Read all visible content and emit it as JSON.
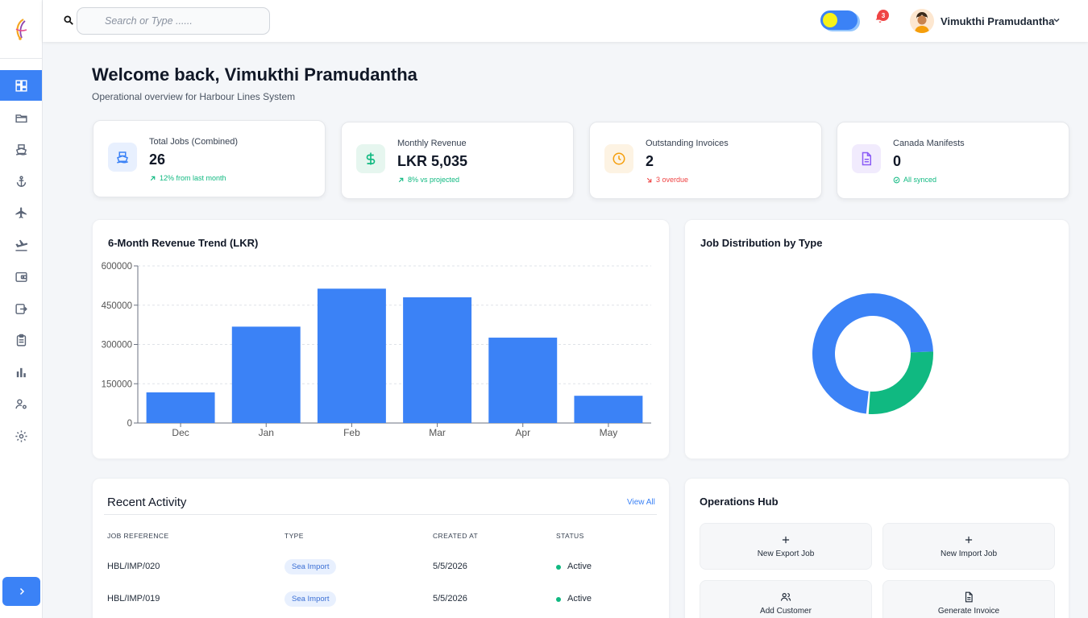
{
  "topbar": {
    "search_placeholder": "Search or Type ......",
    "notification_count": "3",
    "user_name": "Vimukthi Pramudantha"
  },
  "sidebar": {
    "items": [
      {
        "icon": "dashboard-icon",
        "active": true
      },
      {
        "icon": "folder-icon"
      },
      {
        "icon": "ship-icon"
      },
      {
        "icon": "anchor-icon"
      },
      {
        "icon": "plane-icon"
      },
      {
        "icon": "plane-landing-icon"
      },
      {
        "icon": "wallet-icon"
      },
      {
        "icon": "export-icon"
      },
      {
        "icon": "clipboard-icon"
      },
      {
        "icon": "bar-chart-icon"
      },
      {
        "icon": "user-settings-icon"
      },
      {
        "icon": "gear-icon"
      }
    ]
  },
  "header": {
    "welcome": "Welcome back, Vimukthi Pramudantha",
    "subtitle": "Operational overview for Harbour Lines System"
  },
  "stats": [
    {
      "label": "Total Jobs (Combined)",
      "value": "26",
      "trend": "12% from last month",
      "trend_color": "#10b981",
      "icon": "ship-icon",
      "icon_bg": "#e8f0fe",
      "icon_color": "#3b82f6"
    },
    {
      "label": "Monthly Revenue",
      "value": "LKR 5,035",
      "trend": "8% vs projected",
      "trend_color": "#10b981",
      "icon": "dollar-icon",
      "icon_bg": "#e6f6ef",
      "icon_color": "#10b981"
    },
    {
      "label": "Outstanding Invoices",
      "value": "2",
      "trend": "3 overdue",
      "trend_color": "#ef4444",
      "icon": "clock-icon",
      "icon_bg": "#fdf3e3",
      "icon_color": "#f59e0b"
    },
    {
      "label": "Canada Manifests",
      "value": "0",
      "trend": "All synced",
      "trend_color": "#10b981",
      "icon": "document-icon",
      "icon_bg": "#f1ebfd",
      "icon_color": "#8b5cf6"
    }
  ],
  "revenue_panel": {
    "title": "6-Month Revenue Trend (LKR)"
  },
  "distribution_panel": {
    "title": "Job Distribution by Type"
  },
  "chart_data": [
    {
      "type": "bar",
      "title": "6-Month Revenue Trend (LKR)",
      "categories": [
        "Dec",
        "Jan",
        "Feb",
        "Mar",
        "Apr",
        "May"
      ],
      "values": [
        117000,
        368000,
        513000,
        480000,
        326000,
        104000
      ],
      "yticks": [
        0,
        150000,
        300000,
        450000,
        600000
      ],
      "ylim": [
        0,
        600000
      ],
      "color": "#3b82f6",
      "grid": true
    },
    {
      "type": "pie",
      "title": "Job Distribution by Type",
      "values": [
        73,
        27
      ],
      "colors": [
        "#3b82f6",
        "#10b981"
      ]
    }
  ],
  "recent_activity": {
    "title": "Recent Activity",
    "view_all": "View All",
    "columns": [
      "JOB REFERENCE",
      "TYPE",
      "CREATED AT",
      "STATUS"
    ],
    "rows": [
      {
        "ref": "HBL/IMP/020",
        "type": "Sea Import",
        "created": "5/5/2026",
        "status": "Active"
      },
      {
        "ref": "HBL/IMP/019",
        "type": "Sea Import",
        "created": "5/5/2026",
        "status": "Active"
      }
    ]
  },
  "operations_hub": {
    "title": "Operations Hub",
    "actions": [
      {
        "label": "New Export Job",
        "icon": "plus-icon"
      },
      {
        "label": "New Import Job",
        "icon": "plus-icon"
      },
      {
        "label": "Add Customer",
        "icon": "users-icon"
      },
      {
        "label": "Generate Invoice",
        "icon": "document-icon"
      }
    ]
  }
}
